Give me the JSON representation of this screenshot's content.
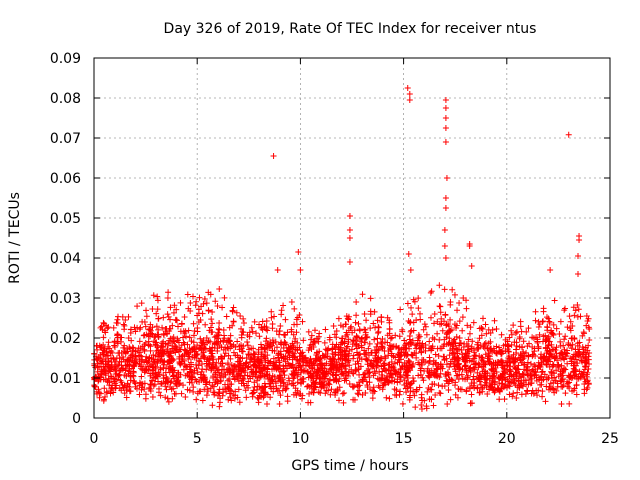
{
  "chart_data": {
    "type": "scatter",
    "title": "Day 326 of 2019, Rate Of TEC Index for receiver ntus",
    "xlabel": "GPS time / hours",
    "ylabel": "ROTI / TECUs",
    "xlim": [
      0,
      25
    ],
    "ylim": [
      0,
      0.09
    ],
    "x_ticks": [
      0,
      5,
      10,
      15,
      20,
      25
    ],
    "y_ticks": [
      0,
      0.01,
      0.02,
      0.03,
      0.04,
      0.05,
      0.06,
      0.07,
      0.08,
      0.09
    ],
    "grid": true,
    "marker": "+",
    "marker_color": "#ff0000",
    "series": [
      {
        "name": "ROTI",
        "x_range": [
          0,
          24
        ],
        "envelope_note": "dense band of points roughly between 0.004 and 0.03 across all hours",
        "envelope": [
          {
            "t": 0.0,
            "low": 0.006,
            "high": 0.023
          },
          {
            "t": 1.0,
            "low": 0.005,
            "high": 0.025
          },
          {
            "t": 2.0,
            "low": 0.006,
            "high": 0.028
          },
          {
            "t": 3.0,
            "low": 0.005,
            "high": 0.031
          },
          {
            "t": 4.0,
            "low": 0.006,
            "high": 0.032
          },
          {
            "t": 5.0,
            "low": 0.005,
            "high": 0.031
          },
          {
            "t": 6.0,
            "low": 0.004,
            "high": 0.033
          },
          {
            "t": 7.0,
            "low": 0.005,
            "high": 0.026
          },
          {
            "t": 8.0,
            "low": 0.005,
            "high": 0.024
          },
          {
            "t": 9.0,
            "low": 0.005,
            "high": 0.029
          },
          {
            "t": 10.0,
            "low": 0.005,
            "high": 0.03
          },
          {
            "t": 11.0,
            "low": 0.006,
            "high": 0.022
          },
          {
            "t": 12.0,
            "low": 0.005,
            "high": 0.027
          },
          {
            "t": 13.0,
            "low": 0.005,
            "high": 0.033
          },
          {
            "t": 14.0,
            "low": 0.006,
            "high": 0.026
          },
          {
            "t": 15.0,
            "low": 0.005,
            "high": 0.028
          },
          {
            "t": 16.0,
            "low": 0.003,
            "high": 0.032
          },
          {
            "t": 17.0,
            "low": 0.005,
            "high": 0.034
          },
          {
            "t": 18.0,
            "low": 0.005,
            "high": 0.03
          },
          {
            "t": 19.0,
            "low": 0.006,
            "high": 0.025
          },
          {
            "t": 20.0,
            "low": 0.005,
            "high": 0.024
          },
          {
            "t": 21.0,
            "low": 0.006,
            "high": 0.025
          },
          {
            "t": 22.0,
            "low": 0.005,
            "high": 0.03
          },
          {
            "t": 23.0,
            "low": 0.005,
            "high": 0.03
          },
          {
            "t": 24.0,
            "low": 0.006,
            "high": 0.026
          }
        ],
        "outliers": [
          {
            "x": 8.7,
            "y": 0.0655
          },
          {
            "x": 8.9,
            "y": 0.037
          },
          {
            "x": 9.9,
            "y": 0.0415
          },
          {
            "x": 10.0,
            "y": 0.037
          },
          {
            "x": 12.4,
            "y": 0.0505
          },
          {
            "x": 12.4,
            "y": 0.047
          },
          {
            "x": 12.4,
            "y": 0.045
          },
          {
            "x": 12.4,
            "y": 0.039
          },
          {
            "x": 15.2,
            "y": 0.0825
          },
          {
            "x": 15.3,
            "y": 0.081
          },
          {
            "x": 15.3,
            "y": 0.0795
          },
          {
            "x": 15.25,
            "y": 0.041
          },
          {
            "x": 15.35,
            "y": 0.037
          },
          {
            "x": 17.05,
            "y": 0.0795
          },
          {
            "x": 17.05,
            "y": 0.0775
          },
          {
            "x": 17.05,
            "y": 0.075
          },
          {
            "x": 17.05,
            "y": 0.0725
          },
          {
            "x": 17.05,
            "y": 0.069
          },
          {
            "x": 17.1,
            "y": 0.06
          },
          {
            "x": 17.05,
            "y": 0.055
          },
          {
            "x": 17.05,
            "y": 0.0525
          },
          {
            "x": 17.0,
            "y": 0.047
          },
          {
            "x": 17.0,
            "y": 0.043
          },
          {
            "x": 17.05,
            "y": 0.04
          },
          {
            "x": 18.2,
            "y": 0.0435
          },
          {
            "x": 18.2,
            "y": 0.043
          },
          {
            "x": 18.3,
            "y": 0.038
          },
          {
            "x": 22.1,
            "y": 0.037
          },
          {
            "x": 23.0,
            "y": 0.0708
          },
          {
            "x": 23.5,
            "y": 0.0455
          },
          {
            "x": 23.5,
            "y": 0.0445
          },
          {
            "x": 23.45,
            "y": 0.0405
          },
          {
            "x": 23.45,
            "y": 0.036
          }
        ]
      }
    ]
  }
}
